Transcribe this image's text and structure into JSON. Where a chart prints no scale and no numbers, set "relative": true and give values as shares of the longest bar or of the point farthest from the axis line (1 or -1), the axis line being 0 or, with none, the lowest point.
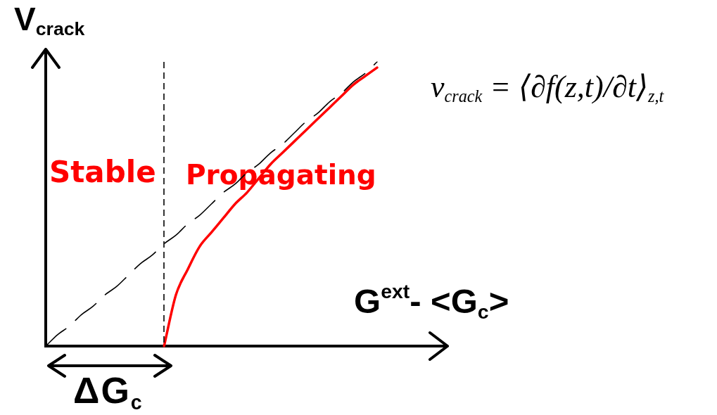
{
  "chart_data": {
    "type": "line",
    "relative": true,
    "xlabel": "G$^{ext}$- <G$_{c}$>",
    "ylabel": "V$_{crack}$",
    "categories": [
      null,
      null,
      null,
      null,
      null,
      null,
      null,
      null,
      null,
      null,
      null,
      null,
      null,
      null,
      null,
      null,
      null,
      null,
      null,
      null,
      null,
      null,
      null,
      null,
      null,
      null,
      null,
      null,
      null,
      null,
      null,
      null,
      null,
      null
    ],
    "series": [
      {
        "color": "#000000",
        "line_style": "dashed",
        "values": [
          0,
          0.04,
          0.07,
          0.11,
          0.14,
          0.18,
          0.21,
          0.25,
          0.29,
          0.32,
          0.36,
          0.39,
          0.43,
          0.46,
          0.5,
          0.54,
          0.57,
          0.61,
          0.64,
          0.68,
          0.71,
          0.75,
          0.79,
          0.82,
          0.86,
          0.89,
          0.93,
          0.96,
          1,
          null,
          null,
          null,
          null,
          null
        ]
      },
      {
        "color": "#ff0000",
        "line_style": "solid",
        "values": [
          null,
          null,
          null,
          null,
          null,
          null,
          null,
          null,
          null,
          null,
          0,
          0.18,
          0.27,
          0.35,
          0.4,
          0.45,
          0.5,
          0.54,
          0.59,
          0.64,
          0.68,
          0.72,
          0.76,
          0.8,
          0.84,
          0.88,
          0.92,
          0.95,
          0.98,
          null,
          null,
          null,
          null,
          null
        ]
      }
    ],
    "annotations": [
      "Stable",
      "Propagating",
      "ΔG$_{c}$",
      "v$_{crack}$ = ⟨∂f(z,t)/∂t⟩$_{z,t}$"
    ],
    "marker": "none"
  }
}
